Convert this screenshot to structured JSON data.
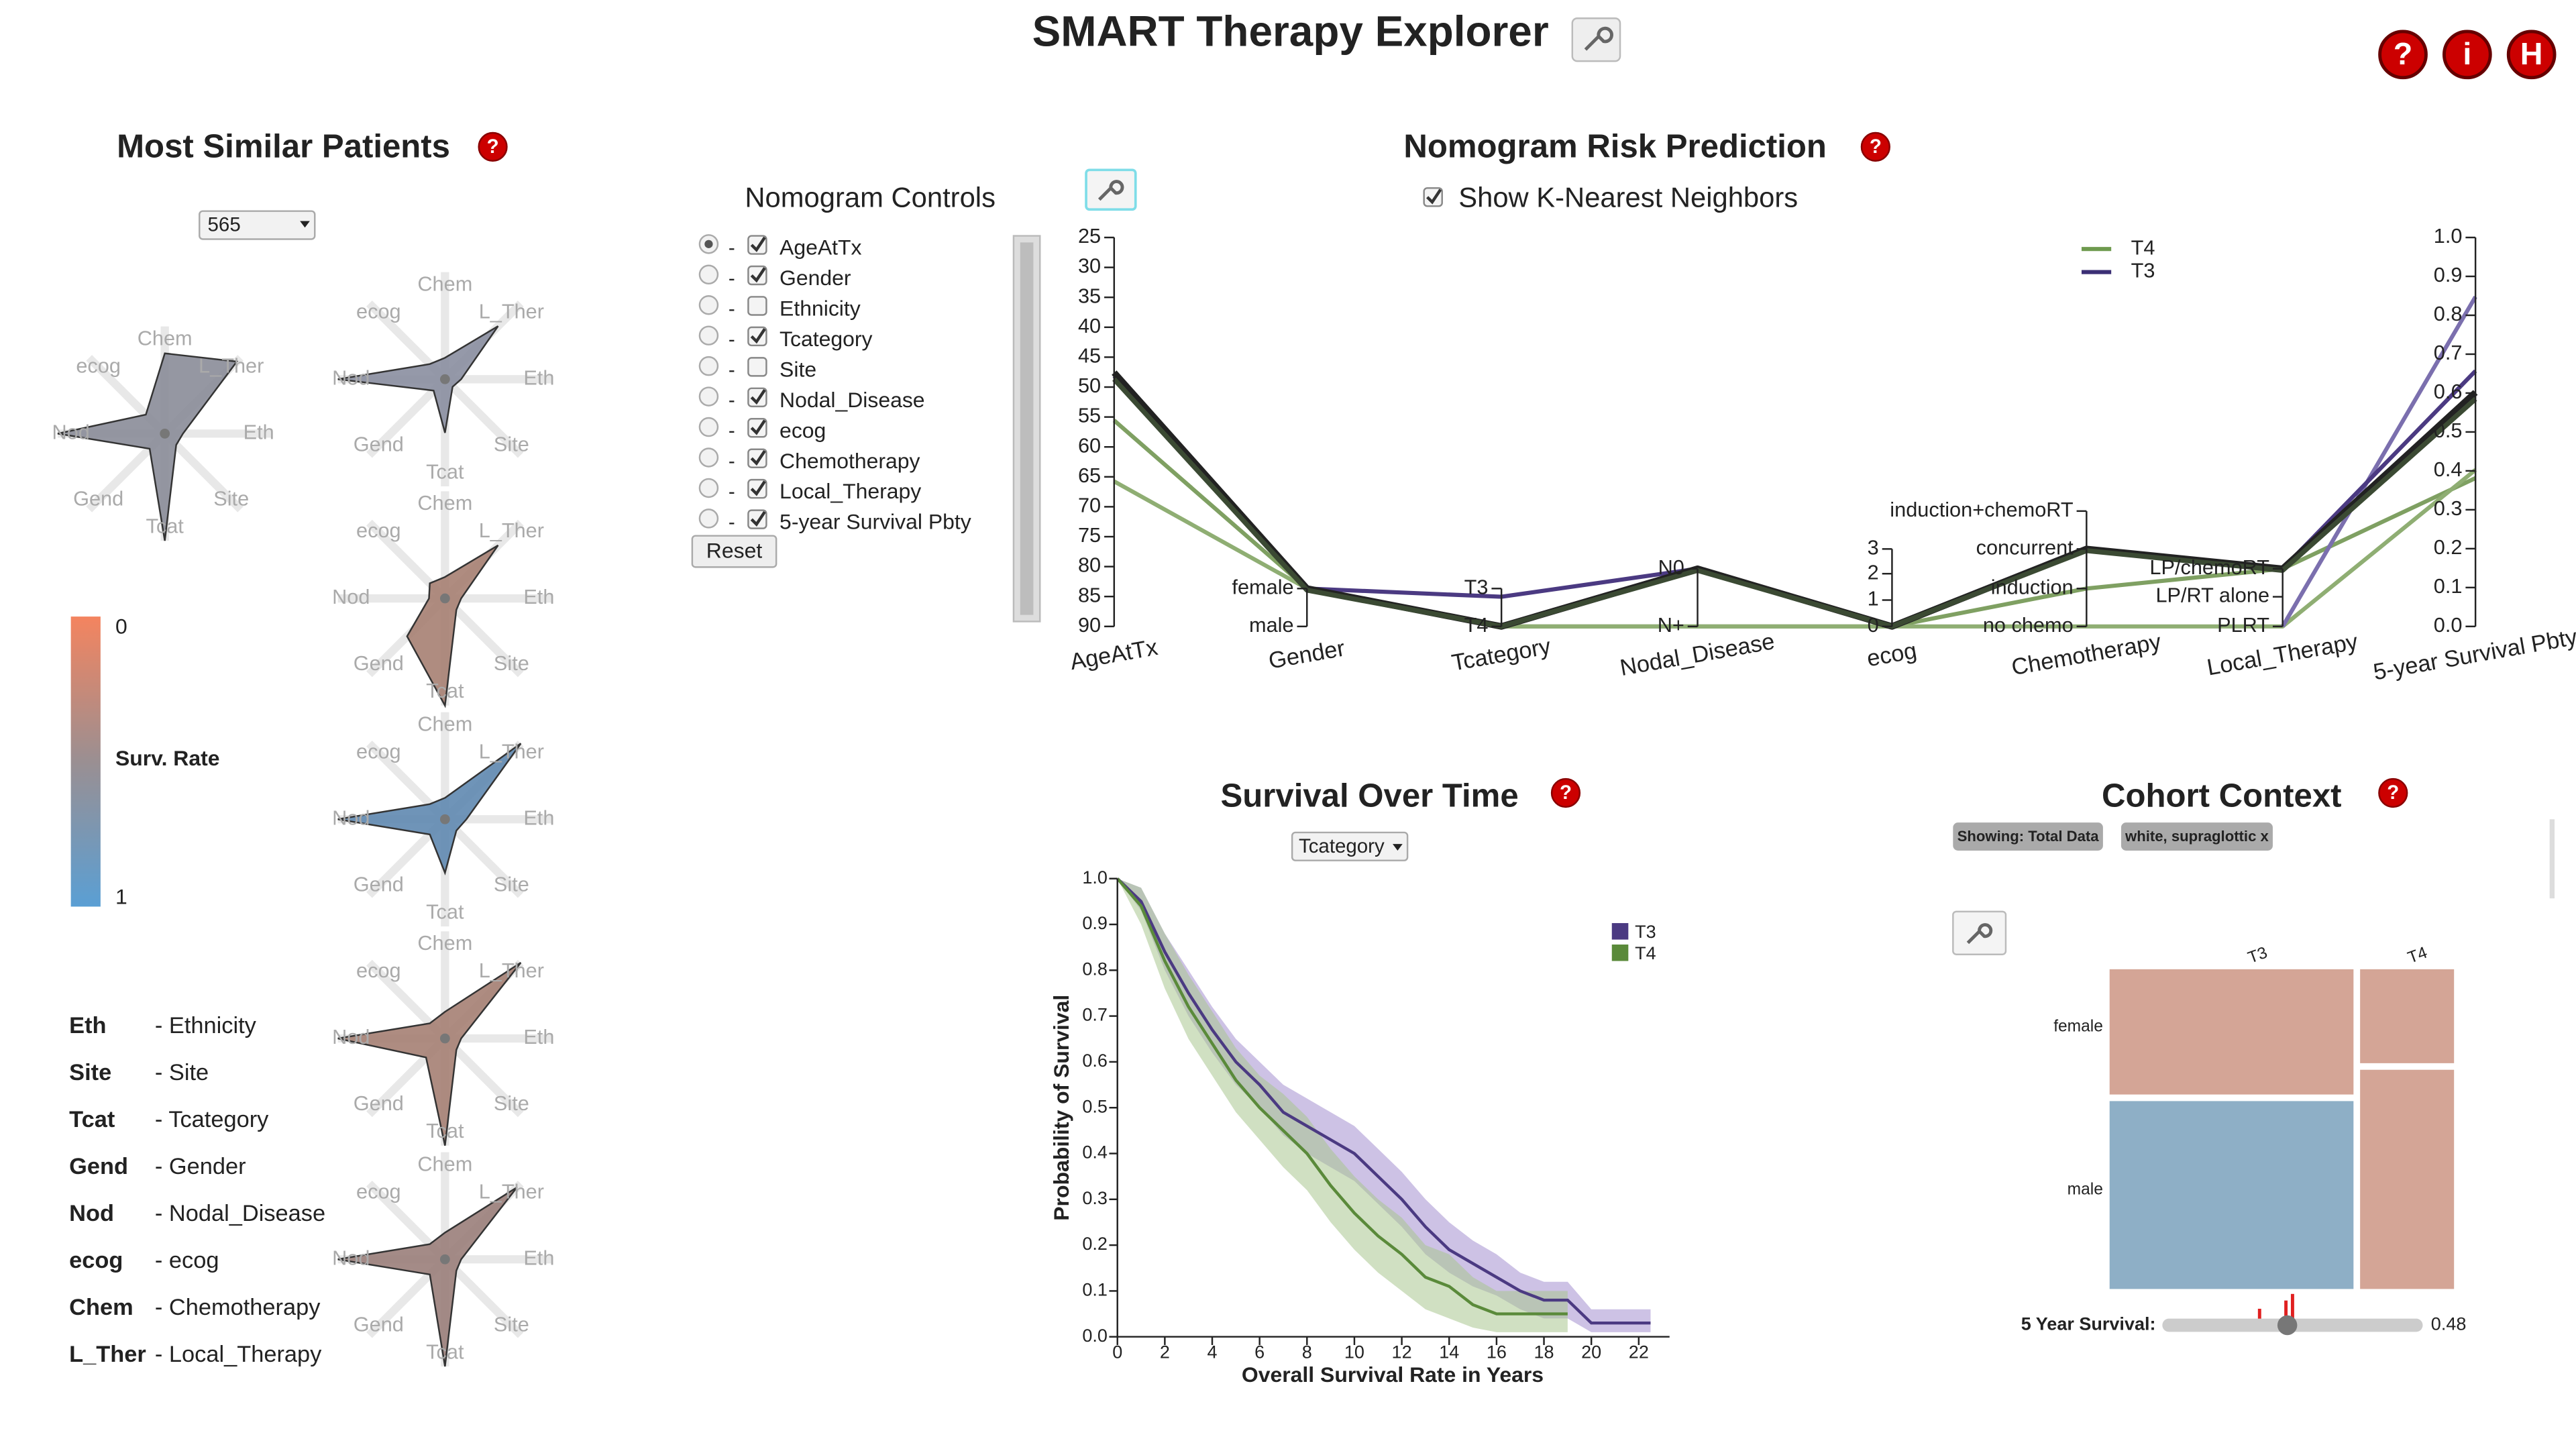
{
  "header": {
    "title": "SMART Therapy Explorer",
    "icons": [
      "?",
      "i",
      "H"
    ]
  },
  "help": "?",
  "similar_patients": {
    "title": "Most Similar Patients",
    "patient_select": "565",
    "radar_axes": [
      "Chem",
      "L_Ther",
      "Eth",
      "Site",
      "Tcat",
      "Gend",
      "Nod",
      "ecog"
    ],
    "radars": [
      {
        "color": "#8a8c98",
        "values": [
          0.75,
          0.95,
          0.17,
          0.15,
          1.0,
          0.2,
          1.0,
          0.25
        ]
      },
      {
        "color": "#8a8ea0",
        "values": [
          0.2,
          0.7,
          0.15,
          0.1,
          0.5,
          0.15,
          1.0,
          0.2
        ]
      },
      {
        "color": "#a67f72",
        "values": [
          0.2,
          0.7,
          0.15,
          0.15,
          1.0,
          0.5,
          0.15,
          0.2
        ]
      },
      {
        "color": "#5f88b0",
        "values": [
          0.2,
          1.0,
          0.2,
          0.15,
          0.5,
          0.2,
          1.0,
          0.2
        ]
      },
      {
        "color": "#a58073",
        "values": [
          0.25,
          1.0,
          0.15,
          0.15,
          1.0,
          0.25,
          1.0,
          0.2
        ]
      },
      {
        "color": "#9a7e7a",
        "values": [
          0.25,
          0.95,
          0.15,
          0.15,
          1.0,
          0.2,
          1.0,
          0.2
        ]
      }
    ],
    "color_scale": {
      "title": "Surv. Rate",
      "min": 0,
      "max": 1
    },
    "abbreviations": [
      {
        "abbr": "Eth",
        "desc": "- Ethnicity"
      },
      {
        "abbr": "Site",
        "desc": "- Site"
      },
      {
        "abbr": "Tcat",
        "desc": "- Tcategory"
      },
      {
        "abbr": "Gend",
        "desc": "- Gender"
      },
      {
        "abbr": "Nod",
        "desc": "- Nodal_Disease"
      },
      {
        "abbr": "ecog",
        "desc": "- ecog"
      },
      {
        "abbr": "Chem",
        "desc": "- Chemotherapy"
      },
      {
        "abbr": "L_Ther",
        "desc": "- Local_Therapy"
      }
    ]
  },
  "nomogram_controls": {
    "title": "Nomogram Controls",
    "rows": [
      {
        "label": "AgeAtTx",
        "checked": true,
        "selected": true
      },
      {
        "label": "Gender",
        "checked": true,
        "selected": false
      },
      {
        "label": "Ethnicity",
        "checked": false,
        "selected": false
      },
      {
        "label": "Tcategory",
        "checked": true,
        "selected": false
      },
      {
        "label": "Site",
        "checked": false,
        "selected": false
      },
      {
        "label": "Nodal_Disease",
        "checked": true,
        "selected": false
      },
      {
        "label": "ecog",
        "checked": true,
        "selected": false
      },
      {
        "label": "Chemotherapy",
        "checked": true,
        "selected": false
      },
      {
        "label": "Local_Therapy",
        "checked": true,
        "selected": false
      },
      {
        "label": "5-year Survival Pbty",
        "checked": true,
        "selected": false
      }
    ],
    "separator": "-",
    "reset": "Reset"
  },
  "nomogram": {
    "title": "Nomogram Risk Prediction",
    "knn_label": "Show K-Nearest Neighbors",
    "knn_checked": true,
    "axes": [
      {
        "name": "AgeAtTx",
        "lim": [
          90,
          25
        ],
        "ticks": [
          25,
          30,
          35,
          40,
          45,
          50,
          55,
          60,
          65,
          70,
          75,
          80,
          85,
          90
        ]
      },
      {
        "name": "Gender",
        "ticks": [
          "female",
          "male"
        ]
      },
      {
        "name": "Tcategory",
        "ticks": [
          "T3",
          "T4"
        ]
      },
      {
        "name": "Nodal_Disease",
        "ticks": [
          "N0",
          "N+"
        ]
      },
      {
        "name": "ecog",
        "ticks": [
          3,
          2,
          1,
          0
        ]
      },
      {
        "name": "Chemotherapy",
        "ticks": [
          "induction+chemoRT",
          "concurrent",
          "induction",
          "no chemo"
        ]
      },
      {
        "name": "Local_Therapy",
        "ticks": [
          "LP/chemoRT",
          "LP/RT alone",
          "PLRT"
        ]
      },
      {
        "name": "5-year Survival Pbty",
        "lim": [
          0,
          1
        ],
        "ticks": [
          {
            "value": 0,
            "label": "0.0"
          },
          0.1,
          0.2,
          0.3,
          0.4,
          0.5,
          0.6,
          0.7,
          0.8,
          0.9,
          {
            "value": 1,
            "label": "1.0"
          }
        ]
      }
    ],
    "legend": [
      {
        "name": "T4",
        "color": "#6e9a4e"
      },
      {
        "name": "T3",
        "color": "#3b2f75"
      }
    ]
  },
  "survival_select": "Tcategory",
  "chart_data": {
    "type": "line",
    "title": "Survival Over Time",
    "xlabel": "Overall Survival Rate in Years",
    "ylabel": "Probability of Survival",
    "xlim": [
      0,
      23.3
    ],
    "ylim": [
      0,
      1
    ],
    "xticks": [
      0,
      2,
      4,
      6,
      8,
      10,
      12,
      14,
      16,
      18,
      20,
      22
    ],
    "yticks": [
      {
        "value": 0,
        "label": "0.0"
      },
      0.1,
      0.2,
      0.3,
      0.4,
      0.5,
      0.6,
      0.7,
      0.8,
      0.9,
      {
        "value": 1,
        "label": "1.0"
      }
    ],
    "x": [
      0,
      1,
      2,
      3,
      4,
      5,
      6,
      7,
      8,
      9,
      10,
      11,
      12,
      13,
      14,
      15,
      16,
      17,
      18,
      19,
      20,
      22.5
    ],
    "series": [
      {
        "name": "T3",
        "color": "#4b3a82",
        "band_color": "#a48fcf",
        "values": [
          1,
          0.95,
          0.84,
          0.75,
          0.67,
          0.6,
          0.55,
          0.49,
          0.46,
          0.43,
          0.4,
          0.35,
          0.3,
          0.24,
          0.19,
          0.16,
          0.13,
          0.1,
          0.08,
          0.08,
          0.03,
          0.03
        ],
        "lower": [
          1,
          0.93,
          0.8,
          0.7,
          0.62,
          0.55,
          0.5,
          0.44,
          0.4,
          0.37,
          0.34,
          0.29,
          0.24,
          0.18,
          0.14,
          0.11,
          0.09,
          0.06,
          0.04,
          0.04,
          0.01,
          0.01
        ],
        "upper": [
          1,
          0.98,
          0.88,
          0.8,
          0.72,
          0.65,
          0.6,
          0.55,
          0.52,
          0.49,
          0.46,
          0.41,
          0.36,
          0.3,
          0.25,
          0.21,
          0.18,
          0.14,
          0.12,
          0.12,
          0.06,
          0.06
        ]
      },
      {
        "name": "T4",
        "color": "#5a8a3a",
        "band_color": "#a9c68f",
        "values": [
          1,
          0.94,
          0.82,
          0.72,
          0.64,
          0.56,
          0.5,
          0.45,
          0.4,
          0.33,
          0.27,
          0.22,
          0.18,
          0.13,
          0.11,
          0.07,
          0.05,
          0.05,
          0.05,
          0.05,
          null,
          null
        ],
        "lower": [
          1,
          0.9,
          0.76,
          0.65,
          0.57,
          0.49,
          0.43,
          0.37,
          0.32,
          0.25,
          0.19,
          0.14,
          0.1,
          0.06,
          0.04,
          0.02,
          0.01,
          0.01,
          0.01,
          0.01,
          null,
          null
        ],
        "upper": [
          1,
          0.98,
          0.88,
          0.79,
          0.71,
          0.63,
          0.57,
          0.53,
          0.48,
          0.41,
          0.35,
          0.3,
          0.26,
          0.2,
          0.18,
          0.13,
          0.1,
          0.1,
          0.1,
          0.1,
          null,
          null
        ]
      }
    ]
  },
  "cohort": {
    "title": "Cohort Context",
    "chips": [
      "Showing: Total Data",
      "white, supraglottic x"
    ],
    "columns": [
      "T3",
      "T4"
    ],
    "rows": [
      "female",
      "male"
    ],
    "slider_label": "5 Year Survival:",
    "slider_value": 0.48
  }
}
